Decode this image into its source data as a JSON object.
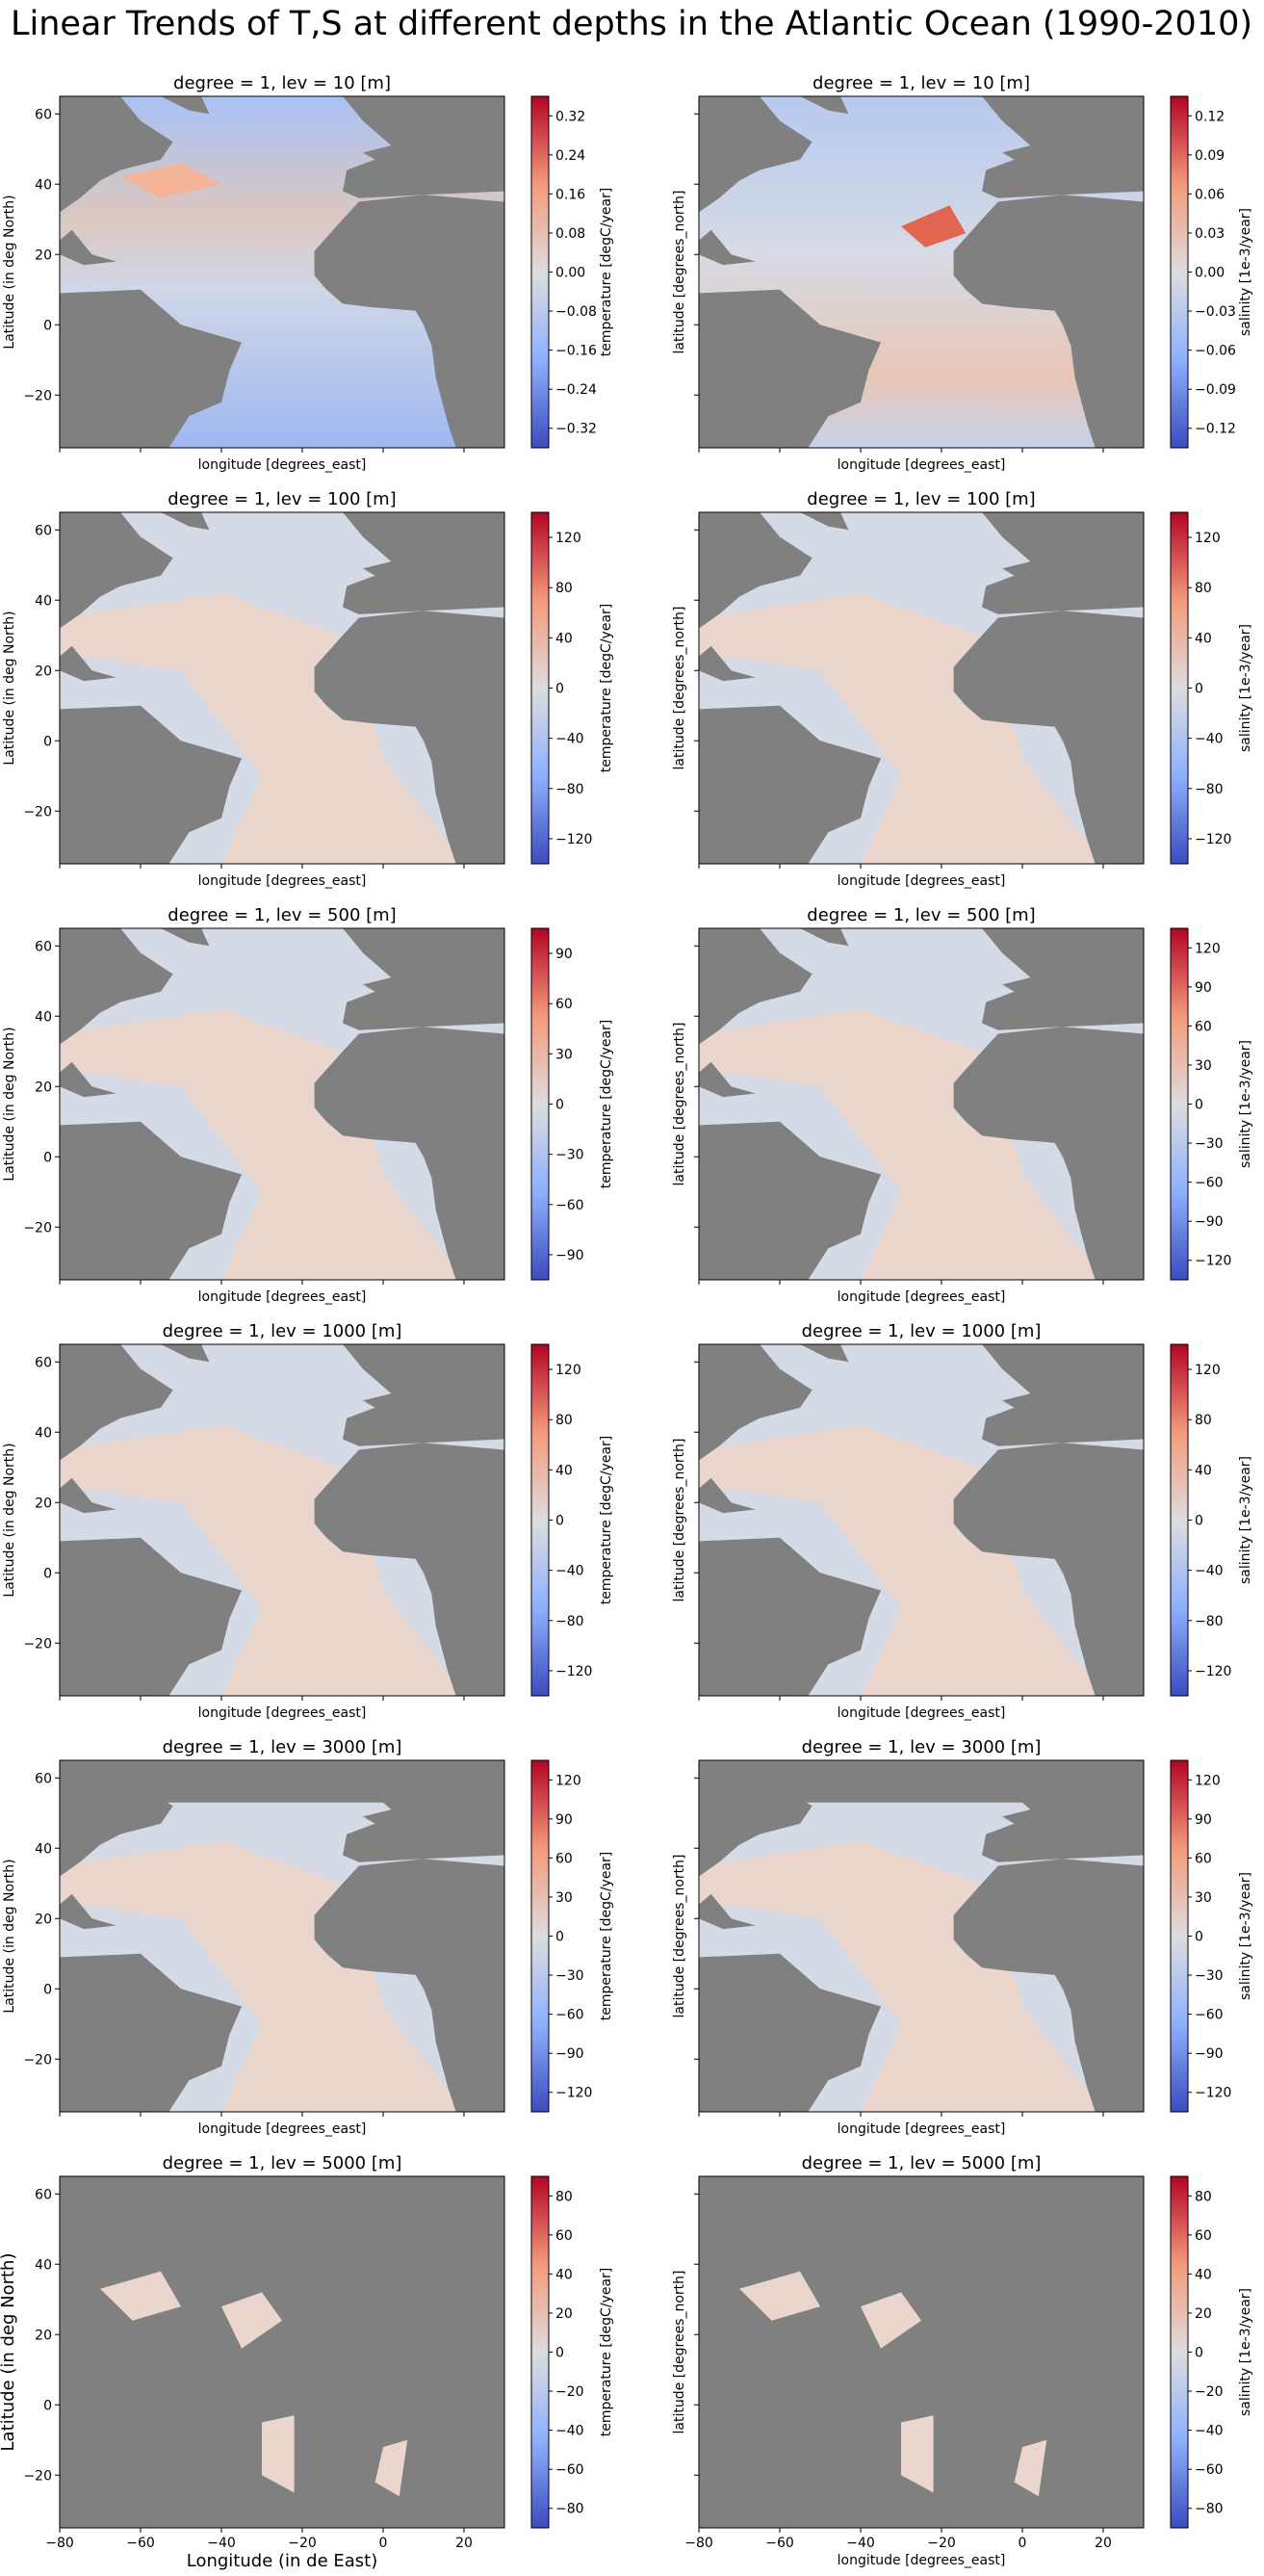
{
  "title": "Linear Trends of T,S at different depths in the Atlantic Ocean (1990-2010)",
  "chart_data": {
    "type": "heatmap",
    "colormap": "coolwarm",
    "colors": {
      "land": "#808080",
      "neg_strong": "#3b4cc0",
      "neutral": "#dddddd",
      "pos_strong": "#b40426",
      "ocean_neg_light": "#d4dbe6",
      "ocean_pos_light": "#ead6cd"
    },
    "xlim": [
      -80,
      30
    ],
    "ylim": [
      -35,
      65
    ],
    "x_ticks": [
      -80,
      -60,
      -40,
      -20,
      0,
      20
    ],
    "y_ticks": [
      -20,
      0,
      20,
      40,
      60
    ],
    "panels": [
      {
        "title": "degree = 1, lev = 10 [m]",
        "var": "temperature",
        "xlabel": "longitude [degrees_east]",
        "ylabel": "Latitude (in deg North)",
        "cbar_label": "temperature [degC/year]",
        "cbar_ticks": [
          "0.32",
          "0.24",
          "0.16",
          "0.08",
          "0.00",
          "−0.08",
          "−0.16",
          "−0.24",
          "−0.32"
        ]
      },
      {
        "title": "degree = 1, lev = 10 [m]",
        "var": "salinity",
        "xlabel": "longitude [degrees_east]",
        "ylabel": "latitude [degrees_north]",
        "cbar_label": "salinity [1e-3/year]",
        "cbar_ticks": [
          "0.12",
          "0.09",
          "0.06",
          "0.03",
          "0.00",
          "−0.03",
          "−0.06",
          "−0.09",
          "−0.12"
        ]
      },
      {
        "title": "degree = 1, lev = 100 [m]",
        "var": "temperature",
        "xlabel": "longitude [degrees_east]",
        "ylabel": "Latitude (in deg North)",
        "cbar_label": "temperature [degC/year]",
        "cbar_ticks": [
          "120",
          "80",
          "40",
          "0",
          "−40",
          "−80",
          "−120"
        ]
      },
      {
        "title": "degree = 1, lev = 100 [m]",
        "var": "salinity",
        "xlabel": "longitude [degrees_east]",
        "ylabel": "latitude [degrees_north]",
        "cbar_label": "salinity [1e-3/year]",
        "cbar_ticks": [
          "120",
          "80",
          "40",
          "0",
          "−40",
          "−80",
          "−120"
        ]
      },
      {
        "title": "degree = 1, lev = 500 [m]",
        "var": "temperature",
        "xlabel": "longitude [degrees_east]",
        "ylabel": "Latitude (in deg North)",
        "cbar_label": "temperature [degC/year]",
        "cbar_ticks": [
          "90",
          "60",
          "30",
          "0",
          "−30",
          "−60",
          "−90"
        ]
      },
      {
        "title": "degree = 1, lev = 500 [m]",
        "var": "salinity",
        "xlabel": "longitude [degrees_east]",
        "ylabel": "latitude [degrees_north]",
        "cbar_label": "salinity [1e-3/year]",
        "cbar_ticks": [
          "120",
          "90",
          "60",
          "30",
          "0",
          "−30",
          "−60",
          "−90",
          "−120"
        ]
      },
      {
        "title": "degree = 1, lev = 1000 [m]",
        "var": "temperature",
        "xlabel": "longitude [degrees_east]",
        "ylabel": "Latitude (in deg North)",
        "cbar_label": "temperature [degC/year]",
        "cbar_ticks": [
          "120",
          "80",
          "40",
          "0",
          "−40",
          "−80",
          "−120"
        ]
      },
      {
        "title": "degree = 1, lev = 1000 [m]",
        "var": "salinity",
        "xlabel": "longitude [degrees_east]",
        "ylabel": "latitude [degrees_north]",
        "cbar_label": "salinity [1e-3/year]",
        "cbar_ticks": [
          "120",
          "80",
          "40",
          "0",
          "−40",
          "−80",
          "−120"
        ]
      },
      {
        "title": "degree = 1, lev = 3000 [m]",
        "var": "temperature",
        "xlabel": "longitude [degrees_east]",
        "ylabel": "Latitude (in deg North)",
        "cbar_label": "temperature [degC/year]",
        "cbar_ticks": [
          "120",
          "90",
          "60",
          "30",
          "0",
          "−30",
          "−60",
          "−90",
          "−120"
        ]
      },
      {
        "title": "degree = 1, lev = 3000 [m]",
        "var": "salinity",
        "xlabel": "longitude [degrees_east]",
        "ylabel": "latitude [degrees_north]",
        "cbar_label": "salinity [1e-3/year]",
        "cbar_ticks": [
          "120",
          "90",
          "60",
          "30",
          "0",
          "−30",
          "−60",
          "−90",
          "−120"
        ]
      },
      {
        "title": "degree = 1, lev = 5000 [m]",
        "var": "temperature",
        "xlabel": "Longitude (in de East)",
        "ylabel": "Latitude (in deg North)",
        "cbar_label": "temperature [degC/year]",
        "cbar_ticks": [
          "80",
          "60",
          "40",
          "20",
          "0",
          "−20",
          "−40",
          "−60",
          "−80"
        ]
      },
      {
        "title": "degree = 1, lev = 5000 [m]",
        "var": "salinity",
        "xlabel": "longitude [degrees_east]",
        "ylabel": "latitude [degrees_north]",
        "cbar_label": "salinity [1e-3/year]",
        "cbar_ticks": [
          "80",
          "60",
          "40",
          "20",
          "0",
          "−20",
          "−40",
          "−60",
          "−80"
        ]
      }
    ]
  }
}
